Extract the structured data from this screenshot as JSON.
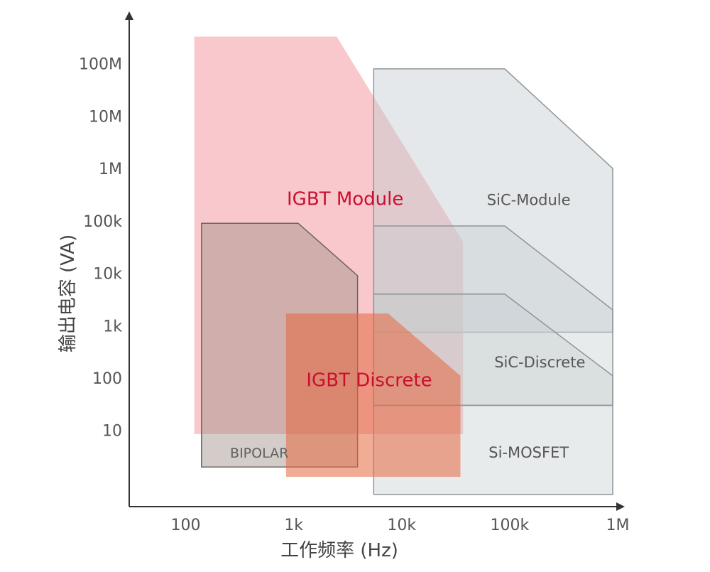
{
  "chart_data": {
    "type": "area",
    "xlabel": "工作频率 (Hz)",
    "ylabel": "输出电容 (VA)",
    "x_scale": "log",
    "y_scale": "log",
    "xlim": [
      30,
      1000000
    ],
    "ylim": [
      0.35,
      1000000000
    ],
    "x_ticks": [
      {
        "value": 100,
        "label": "100"
      },
      {
        "value": 1000,
        "label": "1k"
      },
      {
        "value": 10000,
        "label": "10k"
      },
      {
        "value": 100000,
        "label": "100k"
      },
      {
        "value": 1000000,
        "label": "1M"
      }
    ],
    "y_ticks": [
      {
        "value": 10,
        "label": "10"
      },
      {
        "value": 100,
        "label": "100"
      },
      {
        "value": 1000,
        "label": "1k"
      },
      {
        "value": 10000,
        "label": "10k"
      },
      {
        "value": 100000,
        "label": "100k"
      },
      {
        "value": 1000000,
        "label": "1M"
      },
      {
        "value": 10000000,
        "label": "10M"
      },
      {
        "value": 100000000,
        "label": "100M"
      }
    ],
    "grid": false,
    "legend": "none",
    "regions": [
      {
        "name": "IGBT Module",
        "label_style": "accent",
        "fill": "#f4a3ab",
        "fill_opacity": 0.6,
        "stroke": "none",
        "polygon": [
          [
            120,
            8.5
          ],
          [
            120,
            330000000
          ],
          [
            2500,
            330000000
          ],
          [
            37000,
            40000
          ],
          [
            37000,
            8.5
          ]
        ],
        "label_at": [
          3000,
          200000
        ]
      },
      {
        "name": "SiC-Module",
        "label_style": "normal",
        "fill": "#c6cdd0",
        "fill_opacity": 0.45,
        "stroke": "#909698",
        "polygon": [
          [
            5500,
            750
          ],
          [
            5500,
            80000000
          ],
          [
            90000,
            80000000
          ],
          [
            900000,
            1000000
          ],
          [
            900000,
            750
          ]
        ],
        "label_at": [
          150000,
          200000
        ]
      },
      {
        "name": "",
        "label_style": "normal",
        "fill": "#c6cdd0",
        "fill_opacity": 0.4,
        "stroke": "#909698",
        "polygon": [
          [
            5500,
            30
          ],
          [
            5500,
            80000
          ],
          [
            90000,
            80000
          ],
          [
            900000,
            2000
          ],
          [
            900000,
            30
          ]
        ],
        "label_at": null
      },
      {
        "name": "SiC-Discrete",
        "label_style": "normal",
        "fill": "#c6cdd0",
        "fill_opacity": 0.4,
        "stroke": "#909698",
        "polygon": [
          [
            5500,
            30
          ],
          [
            5500,
            4000
          ],
          [
            90000,
            4000
          ],
          [
            900000,
            110
          ],
          [
            900000,
            30
          ]
        ],
        "label_at": [
          190000,
          160
        ]
      },
      {
        "name": "Si-MOSFET",
        "label_style": "normal",
        "fill": "#c6cdd0",
        "fill_opacity": 0.4,
        "stroke": "#909698",
        "polygon": [
          [
            5500,
            0.6
          ],
          [
            5500,
            30
          ],
          [
            900000,
            30
          ],
          [
            900000,
            0.6
          ]
        ],
        "label_at": [
          150000,
          3
        ]
      },
      {
        "name": "BIPOLAR",
        "label_style": "small",
        "fill": "#9e8e84",
        "fill_opacity": 0.45,
        "stroke": "#6a6462",
        "polygon": [
          [
            140,
            2
          ],
          [
            140,
            90000
          ],
          [
            1100,
            90000
          ],
          [
            3900,
            9000
          ],
          [
            3900,
            2
          ]
        ],
        "label_at": [
          480,
          3
        ]
      },
      {
        "name": "IGBT Discrete",
        "label_style": "accent",
        "fill": "#e5683f",
        "fill_opacity": 0.55,
        "stroke": "none",
        "polygon": [
          [
            850,
            1.3
          ],
          [
            850,
            1700
          ],
          [
            7500,
            1700
          ],
          [
            35000,
            110
          ],
          [
            35000,
            1.3
          ]
        ],
        "label_at": [
          5000,
          70
        ]
      }
    ]
  }
}
